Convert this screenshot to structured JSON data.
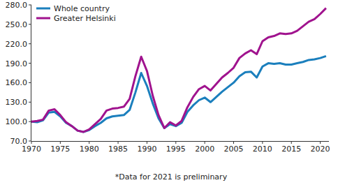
{
  "chart_data": {
    "type": "line",
    "note": "*Data for 2021 is preliminary",
    "x": [
      1970,
      1971,
      1972,
      1973,
      1974,
      1975,
      1976,
      1977,
      1978,
      1979,
      1980,
      1981,
      1982,
      1983,
      1984,
      1985,
      1986,
      1987,
      1988,
      1989,
      1990,
      1991,
      1992,
      1993,
      1994,
      1995,
      1996,
      1997,
      1998,
      1999,
      2000,
      2001,
      2002,
      2003,
      2004,
      2005,
      2006,
      2007,
      2008,
      2009,
      2010,
      2011,
      2012,
      2013,
      2014,
      2015,
      2016,
      2017,
      2018,
      2019,
      2020,
      2021
    ],
    "series": [
      {
        "name": "Whole country",
        "color": "#1b7fbd",
        "values": [
          100,
          99,
          102,
          114,
          115,
          108,
          98,
          93,
          86,
          84,
          87,
          93,
          98,
          105,
          108,
          109,
          110,
          118,
          145,
          175,
          155,
          128,
          105,
          90,
          96,
          93,
          98,
          115,
          125,
          133,
          137,
          130,
          138,
          146,
          153,
          160,
          170,
          176,
          177,
          168,
          185,
          190,
          189,
          190,
          188,
          188,
          190,
          192,
          195,
          196,
          198,
          201
        ]
      },
      {
        "name": "Greater Helsinki",
        "color": "#a0138e",
        "values": [
          100,
          101,
          103,
          117,
          119,
          110,
          99,
          93,
          86,
          84,
          88,
          96,
          104,
          117,
          120,
          121,
          123,
          135,
          170,
          200,
          178,
          140,
          110,
          90,
          99,
          94,
          101,
          122,
          138,
          150,
          155,
          148,
          158,
          168,
          175,
          183,
          198,
          205,
          210,
          204,
          224,
          230,
          232,
          236,
          235,
          236,
          240,
          247,
          254,
          258,
          266,
          275
        ]
      }
    ],
    "xlim": [
      1970,
      2021.5
    ],
    "xticks": [
      1970,
      1975,
      1980,
      1985,
      1990,
      1995,
      2000,
      2005,
      2010,
      2015,
      2020
    ],
    "ylim": [
      70,
      280
    ],
    "yticks": [
      {
        "value": 70,
        "label": "70.0"
      },
      {
        "value": 100,
        "label": "100.0"
      },
      {
        "value": 130,
        "label": "130.0"
      },
      {
        "value": 160,
        "label": "160.0"
      },
      {
        "value": 190,
        "label": "190.0"
      },
      {
        "value": 220,
        "label": "220.0"
      },
      {
        "value": 250,
        "label": "250.0"
      },
      {
        "value": 280,
        "label": "280.0"
      }
    ],
    "grid": false,
    "legend": "top-left"
  }
}
